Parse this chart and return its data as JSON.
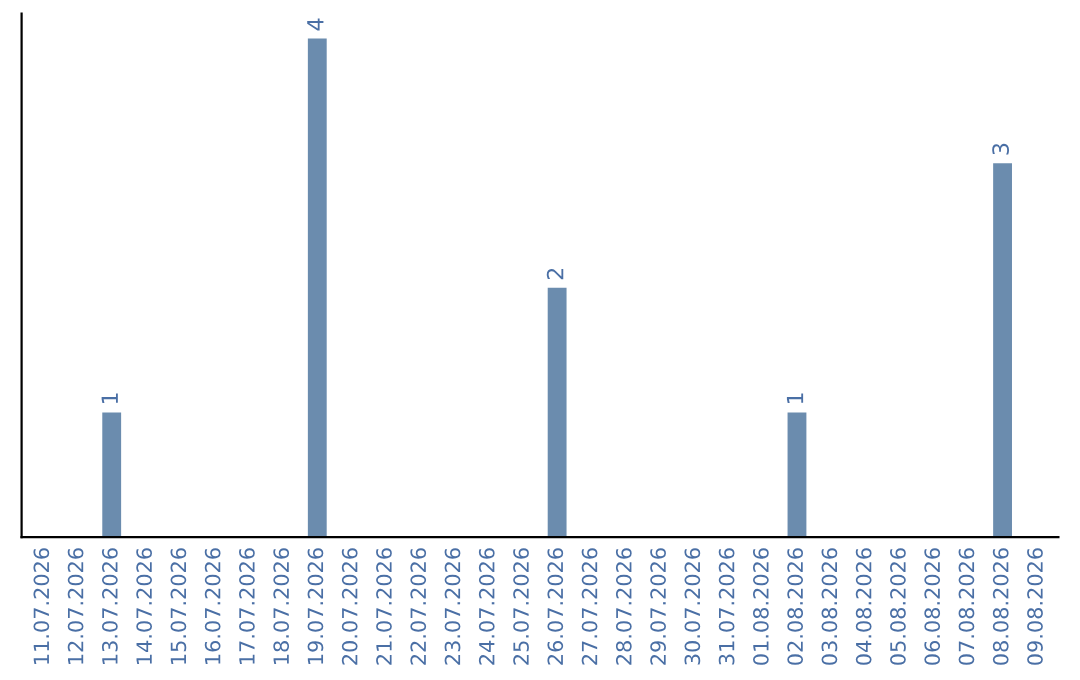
{
  "chart_data": {
    "type": "bar",
    "categories": [
      "11.07.2026",
      "12.07.2026",
      "13.07.2026",
      "14.07.2026",
      "15.07.2026",
      "16.07.2026",
      "17.07.2026",
      "18.07.2026",
      "19.07.2026",
      "20.07.2026",
      "21.07.2026",
      "22.07.2026",
      "23.07.2026",
      "24.07.2026",
      "25.07.2026",
      "26.07.2026",
      "27.07.2026",
      "28.07.2026",
      "29.07.2026",
      "30.07.2026",
      "31.07.2026",
      "01.08.2026",
      "02.08.2026",
      "03.08.2026",
      "04.08.2026",
      "05.08.2026",
      "06.08.2026",
      "07.08.2026",
      "08.08.2026",
      "09.08.2026"
    ],
    "values": [
      0,
      0,
      1,
      0,
      0,
      0,
      0,
      0,
      4,
      0,
      0,
      0,
      0,
      0,
      0,
      2,
      0,
      0,
      0,
      0,
      0,
      0,
      1,
      0,
      0,
      0,
      0,
      0,
      3,
      0
    ],
    "value_labels": [
      null,
      null,
      "1",
      null,
      null,
      null,
      null,
      null,
      "4",
      null,
      null,
      null,
      null,
      null,
      null,
      "2",
      null,
      null,
      null,
      null,
      null,
      null,
      "1",
      null,
      null,
      null,
      null,
      null,
      "3",
      null
    ],
    "color": "#6b8cae",
    "tick_labels": "x",
    "grid": false,
    "legend": false
  }
}
